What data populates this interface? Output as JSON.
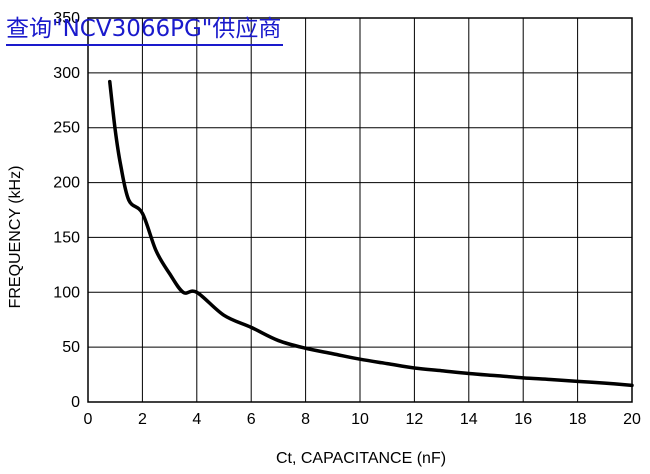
{
  "link": {
    "text": "查询\"NCV3066PG\"供应商",
    "color": "#1a1acc"
  },
  "chart_data": {
    "type": "line",
    "title": "",
    "xlabel": "Ct, CAPACITANCE (nF)",
    "ylabel": "FREQUENCY (kHz)",
    "xlim": [
      0,
      20
    ],
    "ylim": [
      0,
      350
    ],
    "x_ticks": [
      "0",
      "2",
      "4",
      "6",
      "8",
      "10",
      "12",
      "14",
      "16",
      "18",
      "20"
    ],
    "y_ticks": [
      "0",
      "50",
      "100",
      "150",
      "200",
      "250",
      "300",
      "350"
    ],
    "grid": true,
    "legend": "none",
    "series": [
      {
        "color": "#000000",
        "x": [
          0.8,
          1.0,
          1.2,
          1.5,
          2.0,
          2.5,
          3.0,
          3.5,
          4.0,
          5.0,
          6.0,
          7.0,
          8.0,
          9.0,
          10.0,
          11.0,
          12.0,
          13.0,
          14.0,
          15.0,
          16.0,
          17.0,
          18.0,
          19.0,
          20.0
        ],
        "y": [
          292,
          248,
          216,
          184,
          172,
          138,
          117,
          100,
          100,
          79,
          68,
          56,
          49,
          44,
          39,
          35,
          31,
          28.5,
          26,
          24,
          22,
          20.5,
          18.8,
          17.2,
          15.2
        ]
      }
    ]
  }
}
